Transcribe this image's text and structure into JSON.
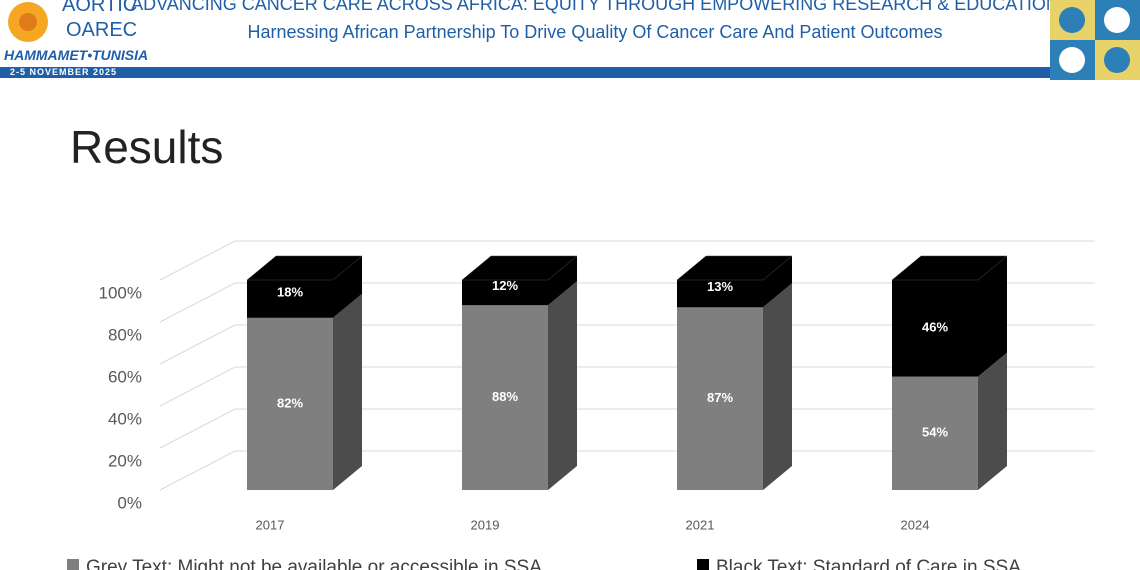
{
  "header": {
    "logo_top": "AORTIC",
    "logo_middle": "OAREC",
    "logo_city": "HAMMAMET•TUNISIA",
    "dates": "2-5 NOVEMBER 2025",
    "title": "ADVANCING CANCER CARE ACROSS AFRICA: EQUITY THROUGH EMPOWERING RESEARCH & EDUCATION",
    "subtitle": "Harnessing African Partnership To Drive Quality Of Cancer Care And Patient Outcomes"
  },
  "slide_title": "Results",
  "chart_data": {
    "type": "bar",
    "stacked": true,
    "categories": [
      "2017",
      "2019",
      "2021",
      "2024"
    ],
    "series": [
      {
        "name": "Grey Text: Might not be available or accessible in SSA",
        "color": "#7f7f7f",
        "values": [
          82,
          88,
          87,
          54
        ],
        "value_labels": [
          "82%",
          "88%",
          "87%",
          "54%"
        ]
      },
      {
        "name": "Black Text: Standard of Care in SSA",
        "color": "#000000",
        "values": [
          18,
          12,
          13,
          46
        ],
        "value_labels": [
          "18%",
          "12%",
          "13%",
          "46%"
        ]
      }
    ],
    "ylim": [
      0,
      100
    ],
    "yticks": [
      {
        "value": 0,
        "label": "0%"
      },
      {
        "value": 20,
        "label": "20%"
      },
      {
        "value": 40,
        "label": "40%"
      },
      {
        "value": 60,
        "label": "60%"
      },
      {
        "value": 80,
        "label": "80%"
      },
      {
        "value": 100,
        "label": "100%"
      }
    ],
    "grid": true,
    "legend": "bottom"
  }
}
